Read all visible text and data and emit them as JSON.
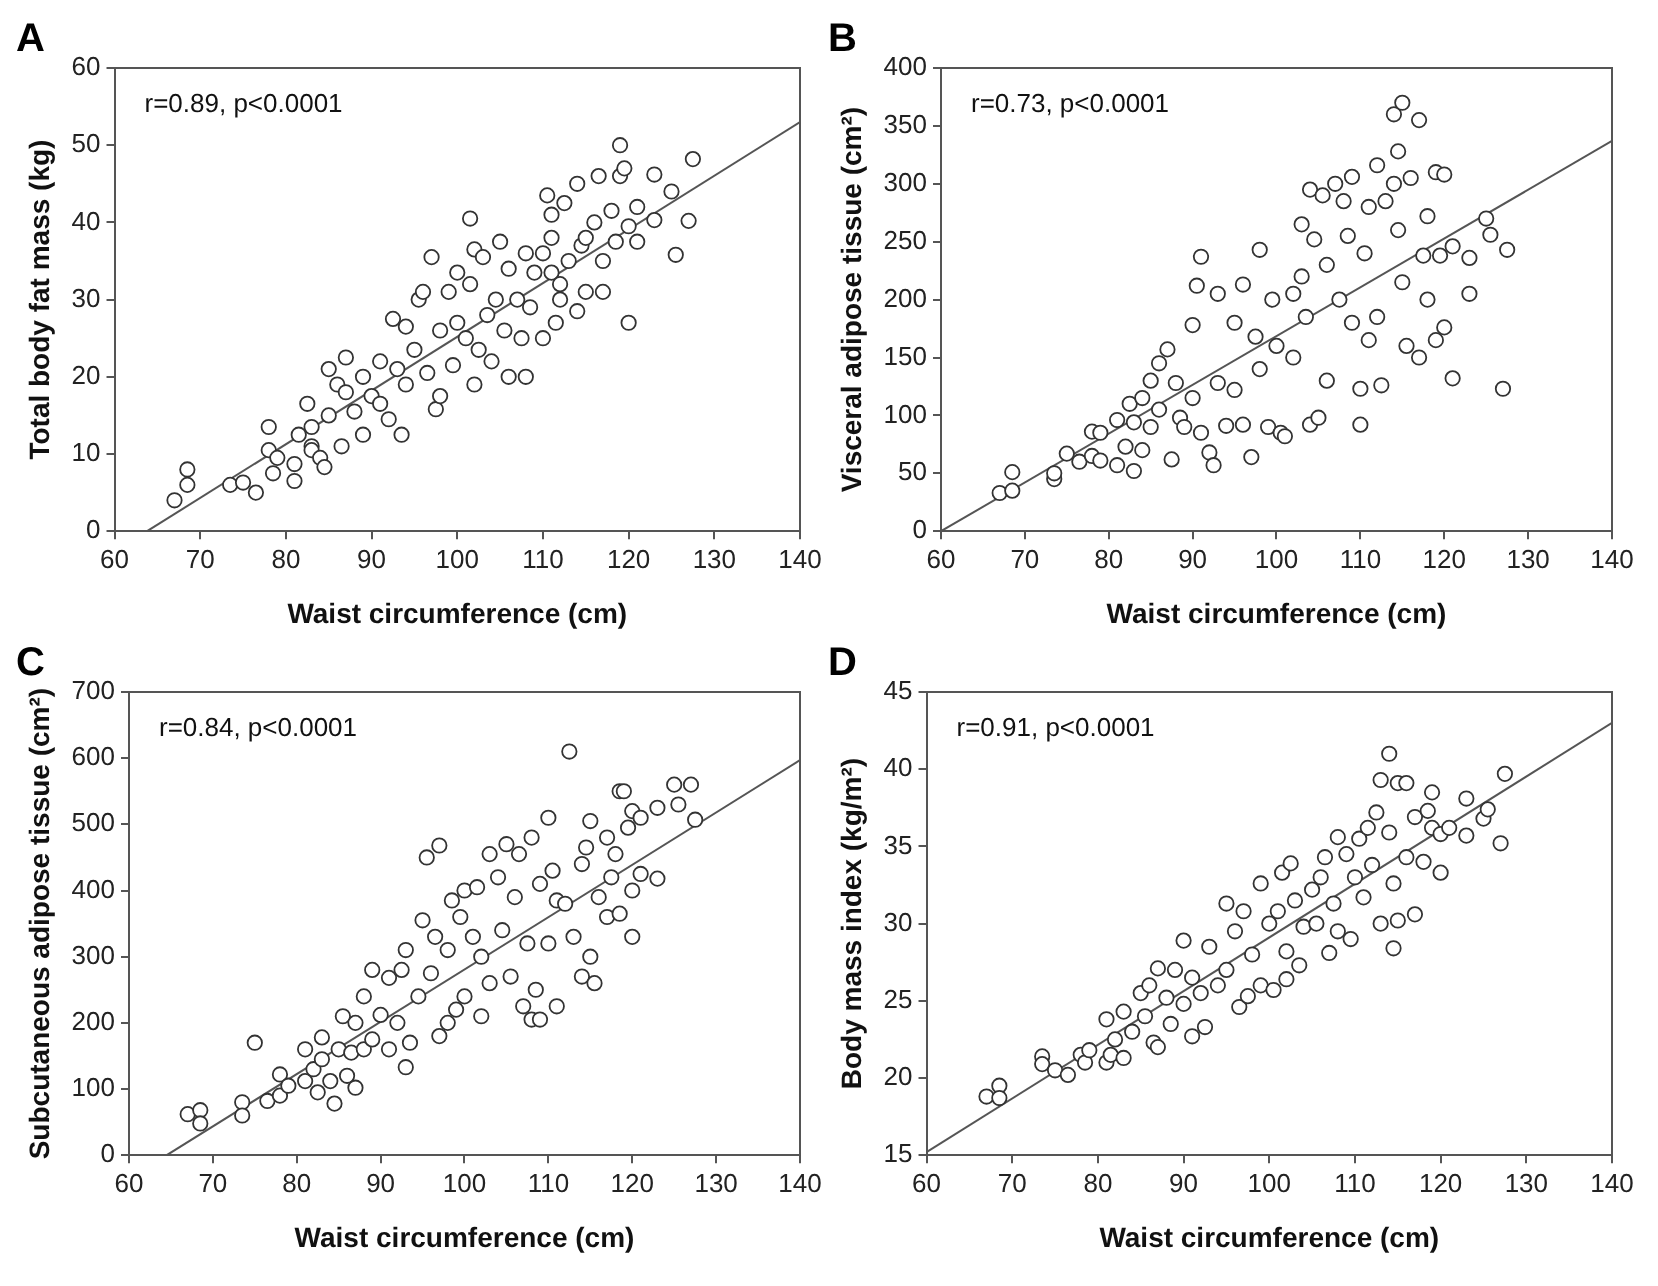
{
  "chart_data": [
    {
      "type": "scatter",
      "title": "A",
      "xlabel": "Waist circumference (cm)",
      "ylabel": "Total body fat mass (kg)",
      "annotations": [
        "r=0.89, p<0.0001"
      ],
      "xlim": [
        60,
        140
      ],
      "xticks": [
        60,
        70,
        80,
        90,
        100,
        110,
        120,
        130,
        140
      ],
      "ylim": [
        0,
        60
      ],
      "yticks": [
        0,
        10,
        20,
        30,
        40,
        50,
        60
      ],
      "series": [
        {
          "marker": "circle",
          "color": "#333333",
          "x": [
            67,
            68.5,
            68.5,
            73.5,
            75,
            76.5,
            78,
            78,
            78.5,
            79,
            81,
            81,
            81.5,
            82.5,
            83,
            83,
            83,
            84,
            84.5,
            85,
            85,
            86,
            86.5,
            87,
            87,
            88,
            89,
            89,
            90,
            91,
            91,
            92,
            92.5,
            93,
            93.5,
            94,
            94,
            95,
            95.5,
            96,
            96.5,
            97,
            97.5,
            98,
            98,
            99,
            99.5,
            100,
            100,
            101,
            101.5,
            101.5,
            102,
            102,
            102.5,
            103,
            103.5,
            104,
            104.5,
            105,
            105.5,
            106,
            106,
            107,
            107.5,
            108,
            108,
            108.5,
            109,
            110,
            110,
            110.5,
            111,
            111,
            111,
            111.5,
            112,
            112,
            112.5,
            113,
            114,
            114,
            114.5,
            115,
            115,
            116,
            116.5,
            117,
            117,
            118,
            118.5,
            119,
            119,
            119.5,
            120,
            120,
            121,
            121,
            123,
            123,
            125,
            125.5,
            127,
            127.5
          ],
          "values": [
            4,
            8,
            6,
            6,
            6.3,
            5,
            13.5,
            10.5,
            7.5,
            9.5,
            8.7,
            6.5,
            12.5,
            16.5,
            13.5,
            11,
            10.5,
            9.5,
            8.3,
            21,
            15,
            19,
            11,
            22.5,
            18,
            15.5,
            20,
            12.5,
            17.5,
            22,
            16.5,
            14.5,
            27.5,
            21,
            12.5,
            19,
            26.5,
            23.5,
            30,
            31,
            20.5,
            35.5,
            15.8,
            26,
            17.5,
            31,
            21.5,
            33.5,
            27,
            25,
            40.5,
            32,
            19,
            36.5,
            23.5,
            35.5,
            28,
            22,
            30,
            37.5,
            26,
            20,
            34,
            30,
            25,
            36,
            20,
            29,
            33.5,
            25,
            36,
            43.5,
            41,
            38,
            33.5,
            27,
            32,
            30,
            42.5,
            35,
            45,
            28.5,
            37,
            38,
            31,
            40,
            46,
            31,
            35,
            41.5,
            37.5,
            50,
            46,
            47,
            39.5,
            27,
            42,
            37.5,
            46.2,
            40.3,
            44,
            35.8,
            40.2,
            48.2
          ]
        },
        {
          "type": "line",
          "marker": "none",
          "color": "#555555",
          "x": [
            63.8,
            140
          ],
          "values": [
            0,
            53
          ]
        }
      ]
    },
    {
      "type": "scatter",
      "title": "B",
      "xlabel": "Waist circumference (cm)",
      "ylabel": "Visceral adipose tissue (cm²)",
      "annotations": [
        "r=0.73, p<0.0001"
      ],
      "xlim": [
        60,
        140
      ],
      "xticks": [
        60,
        70,
        80,
        90,
        100,
        110,
        120,
        130,
        140
      ],
      "ylim": [
        0,
        400
      ],
      "yticks": [
        0,
        50,
        100,
        150,
        200,
        250,
        300,
        350,
        400
      ],
      "series": [
        {
          "marker": "circle",
          "color": "#333333",
          "x": [
            67,
            68.5,
            68.5,
            73.5,
            73.5,
            75,
            76.5,
            78,
            78,
            79,
            79,
            81,
            81,
            82,
            82.5,
            83,
            83,
            84,
            84,
            85,
            85,
            86,
            86,
            87,
            87.5,
            88,
            88.5,
            89,
            90,
            90,
            90.5,
            91,
            91,
            92,
            92.5,
            93,
            93,
            94,
            95,
            95,
            96,
            96,
            97,
            97.5,
            98,
            98,
            99,
            99.5,
            100,
            100.5,
            101,
            102,
            102,
            103,
            103,
            103.5,
            104,
            104,
            104.5,
            105,
            105.5,
            106,
            106,
            107,
            107.5,
            108,
            108.5,
            109,
            109,
            110,
            110,
            110.5,
            111,
            111,
            112,
            112,
            112.5,
            113,
            114,
            114,
            114.5,
            114.5,
            115,
            115,
            115.5,
            116,
            117,
            117,
            117.5,
            118,
            118,
            119,
            119,
            119.5,
            120,
            120,
            121,
            121,
            123,
            123,
            125,
            125.5,
            127,
            127.5
          ],
          "values": [
            33,
            51,
            35,
            45,
            50,
            67,
            60,
            65,
            86,
            85,
            61,
            96,
            57,
            73,
            110,
            52,
            94,
            70,
            115,
            130,
            90,
            145,
            105,
            157,
            62,
            128,
            98,
            90,
            178,
            115,
            212,
            237,
            85,
            68,
            57,
            205,
            128,
            91,
            180,
            122,
            213,
            92,
            64,
            168,
            243,
            140,
            90,
            200,
            160,
            85,
            82,
            205,
            150,
            265,
            220,
            185,
            295,
            92,
            252,
            98,
            290,
            130,
            230,
            300,
            200,
            285,
            255,
            306,
            180,
            123,
            92,
            240,
            280,
            165,
            316,
            185,
            126,
            285,
            360,
            300,
            328,
            260,
            370,
            215,
            160,
            305,
            355,
            150,
            238,
            272,
            200,
            310,
            165,
            238,
            308,
            176,
            132,
            246,
            236,
            205,
            270,
            256,
            123,
            243
          ]
        },
        {
          "type": "line",
          "marker": "none",
          "color": "#555555",
          "x": [
            60,
            140
          ],
          "values": [
            0,
            337
          ]
        }
      ]
    },
    {
      "type": "scatter",
      "title": "C",
      "xlabel": "Waist circumference (cm)",
      "ylabel": "Subcutaneous adipose tissue (cm²)",
      "annotations": [
        "r=0.84, p<0.0001"
      ],
      "xlim": [
        60,
        140
      ],
      "xticks": [
        60,
        70,
        80,
        90,
        100,
        110,
        120,
        130,
        140
      ],
      "ylim": [
        0,
        700
      ],
      "yticks": [
        0,
        100,
        200,
        300,
        400,
        500,
        600,
        700
      ],
      "series": [
        {
          "marker": "circle",
          "color": "#333333",
          "x": [
            67,
            68.5,
            68.5,
            73.5,
            73.5,
            75,
            76.5,
            78,
            78,
            79,
            81,
            81,
            82,
            82.5,
            83,
            83,
            84,
            84.5,
            85,
            85.5,
            86,
            86.5,
            87,
            87,
            88,
            88,
            89,
            89,
            90,
            91,
            91,
            92,
            92.5,
            93,
            93,
            93.5,
            94.5,
            95,
            95.5,
            96,
            96.5,
            97,
            97,
            98,
            98,
            98.5,
            99,
            99.5,
            100,
            100,
            101,
            101.5,
            102,
            102,
            103,
            103,
            104,
            104.5,
            105,
            105.5,
            106,
            106.5,
            107,
            107.5,
            108,
            108,
            108.5,
            109,
            109,
            110,
            110,
            110.5,
            111,
            111,
            112,
            112.5,
            113,
            114,
            114,
            114.5,
            115,
            115.5,
            115,
            116,
            117,
            117,
            117.5,
            118,
            118.5,
            118.5,
            119,
            119.5,
            120,
            120,
            120,
            121,
            121,
            123,
            123,
            125,
            125.5,
            127,
            127.5
          ],
          "values": [
            62,
            68,
            48,
            80,
            60,
            170,
            82,
            122,
            90,
            105,
            160,
            112,
            130,
            95,
            178,
            145,
            112,
            78,
            160,
            210,
            120,
            155,
            102,
            200,
            240,
            160,
            280,
            175,
            212,
            268,
            160,
            200,
            280,
            310,
            133,
            170,
            240,
            355,
            450,
            275,
            330,
            468,
            180,
            310,
            200,
            385,
            220,
            360,
            400,
            240,
            330,
            405,
            210,
            300,
            455,
            260,
            420,
            340,
            470,
            270,
            390,
            455,
            225,
            320,
            480,
            205,
            250,
            410,
            205,
            510,
            320,
            430,
            225,
            385,
            380,
            610,
            330,
            270,
            440,
            465,
            505,
            260,
            300,
            390,
            480,
            360,
            420,
            455,
            550,
            365,
            550,
            495,
            330,
            520,
            400,
            425,
            510,
            525,
            418,
            560,
            530,
            560,
            507
          ]
        },
        {
          "type": "line",
          "marker": "none",
          "color": "#555555",
          "x": [
            64.5,
            140
          ],
          "values": [
            0,
            597
          ]
        }
      ]
    },
    {
      "type": "scatter",
      "title": "D",
      "xlabel": "Waist circumference (cm)",
      "ylabel": "Body mass index (kg/m²)",
      "annotations": [
        "r=0.91, p<0.0001"
      ],
      "xlim": [
        60,
        140
      ],
      "xticks": [
        60,
        70,
        80,
        90,
        100,
        110,
        120,
        130,
        140
      ],
      "ylim": [
        15,
        45
      ],
      "yticks": [
        15,
        20,
        25,
        30,
        35,
        40,
        45
      ],
      "series": [
        {
          "marker": "circle",
          "color": "#333333",
          "x": [
            67,
            68.5,
            68.5,
            73.5,
            73.5,
            75,
            76.5,
            78,
            78.5,
            79,
            81,
            81,
            81.5,
            82,
            83,
            83,
            84,
            85,
            85.5,
            86,
            86.5,
            87,
            87,
            88,
            88.5,
            89,
            90,
            90,
            91,
            91,
            92,
            92.5,
            93,
            94,
            95,
            95,
            96,
            96.5,
            97,
            97.5,
            98,
            99,
            99,
            100,
            100.5,
            101,
            101.5,
            102,
            102,
            102.5,
            103,
            103.5,
            104,
            105,
            105.5,
            106,
            106.5,
            107,
            107.5,
            108,
            108,
            109,
            109.5,
            110,
            110.5,
            111,
            111.5,
            112,
            112.5,
            113,
            113,
            114,
            114,
            114.5,
            114.5,
            115,
            115,
            116,
            116,
            117,
            117,
            118,
            118.5,
            119,
            119,
            120,
            120,
            121,
            123,
            123,
            125,
            125.5,
            127,
            127.5
          ],
          "values": [
            18.8,
            19.5,
            18.7,
            21.4,
            20.9,
            20.5,
            20.2,
            21.5,
            21,
            21.8,
            23.8,
            21,
            21.5,
            22.5,
            24.3,
            21.3,
            23,
            25.5,
            24,
            26,
            22.3,
            27.1,
            22,
            25.2,
            23.5,
            27,
            28.9,
            24.8,
            26.5,
            22.7,
            25.5,
            23.3,
            28.5,
            26,
            31.3,
            27,
            29.5,
            24.6,
            30.8,
            25.3,
            28,
            32.6,
            26,
            30,
            25.7,
            30.8,
            33.3,
            28.2,
            26.4,
            33.9,
            31.5,
            27.3,
            29.8,
            32.2,
            30,
            33,
            34.3,
            28.1,
            31.3,
            35.6,
            29.5,
            34.5,
            29,
            33,
            35.5,
            31.7,
            36.2,
            33.8,
            37.2,
            39.3,
            30,
            41,
            35.9,
            28.4,
            32.6,
            39.1,
            30.2,
            39.1,
            34.3,
            30.6,
            36.9,
            34,
            37.3,
            36.2,
            38.5,
            33.3,
            35.8,
            36.2,
            38.1,
            35.7,
            36.8,
            37.4,
            35.2,
            39.7
          ]
        },
        {
          "type": "line",
          "marker": "none",
          "color": "#555555",
          "x": [
            60,
            140
          ],
          "values": [
            15.2,
            43
          ]
        }
      ]
    }
  ]
}
